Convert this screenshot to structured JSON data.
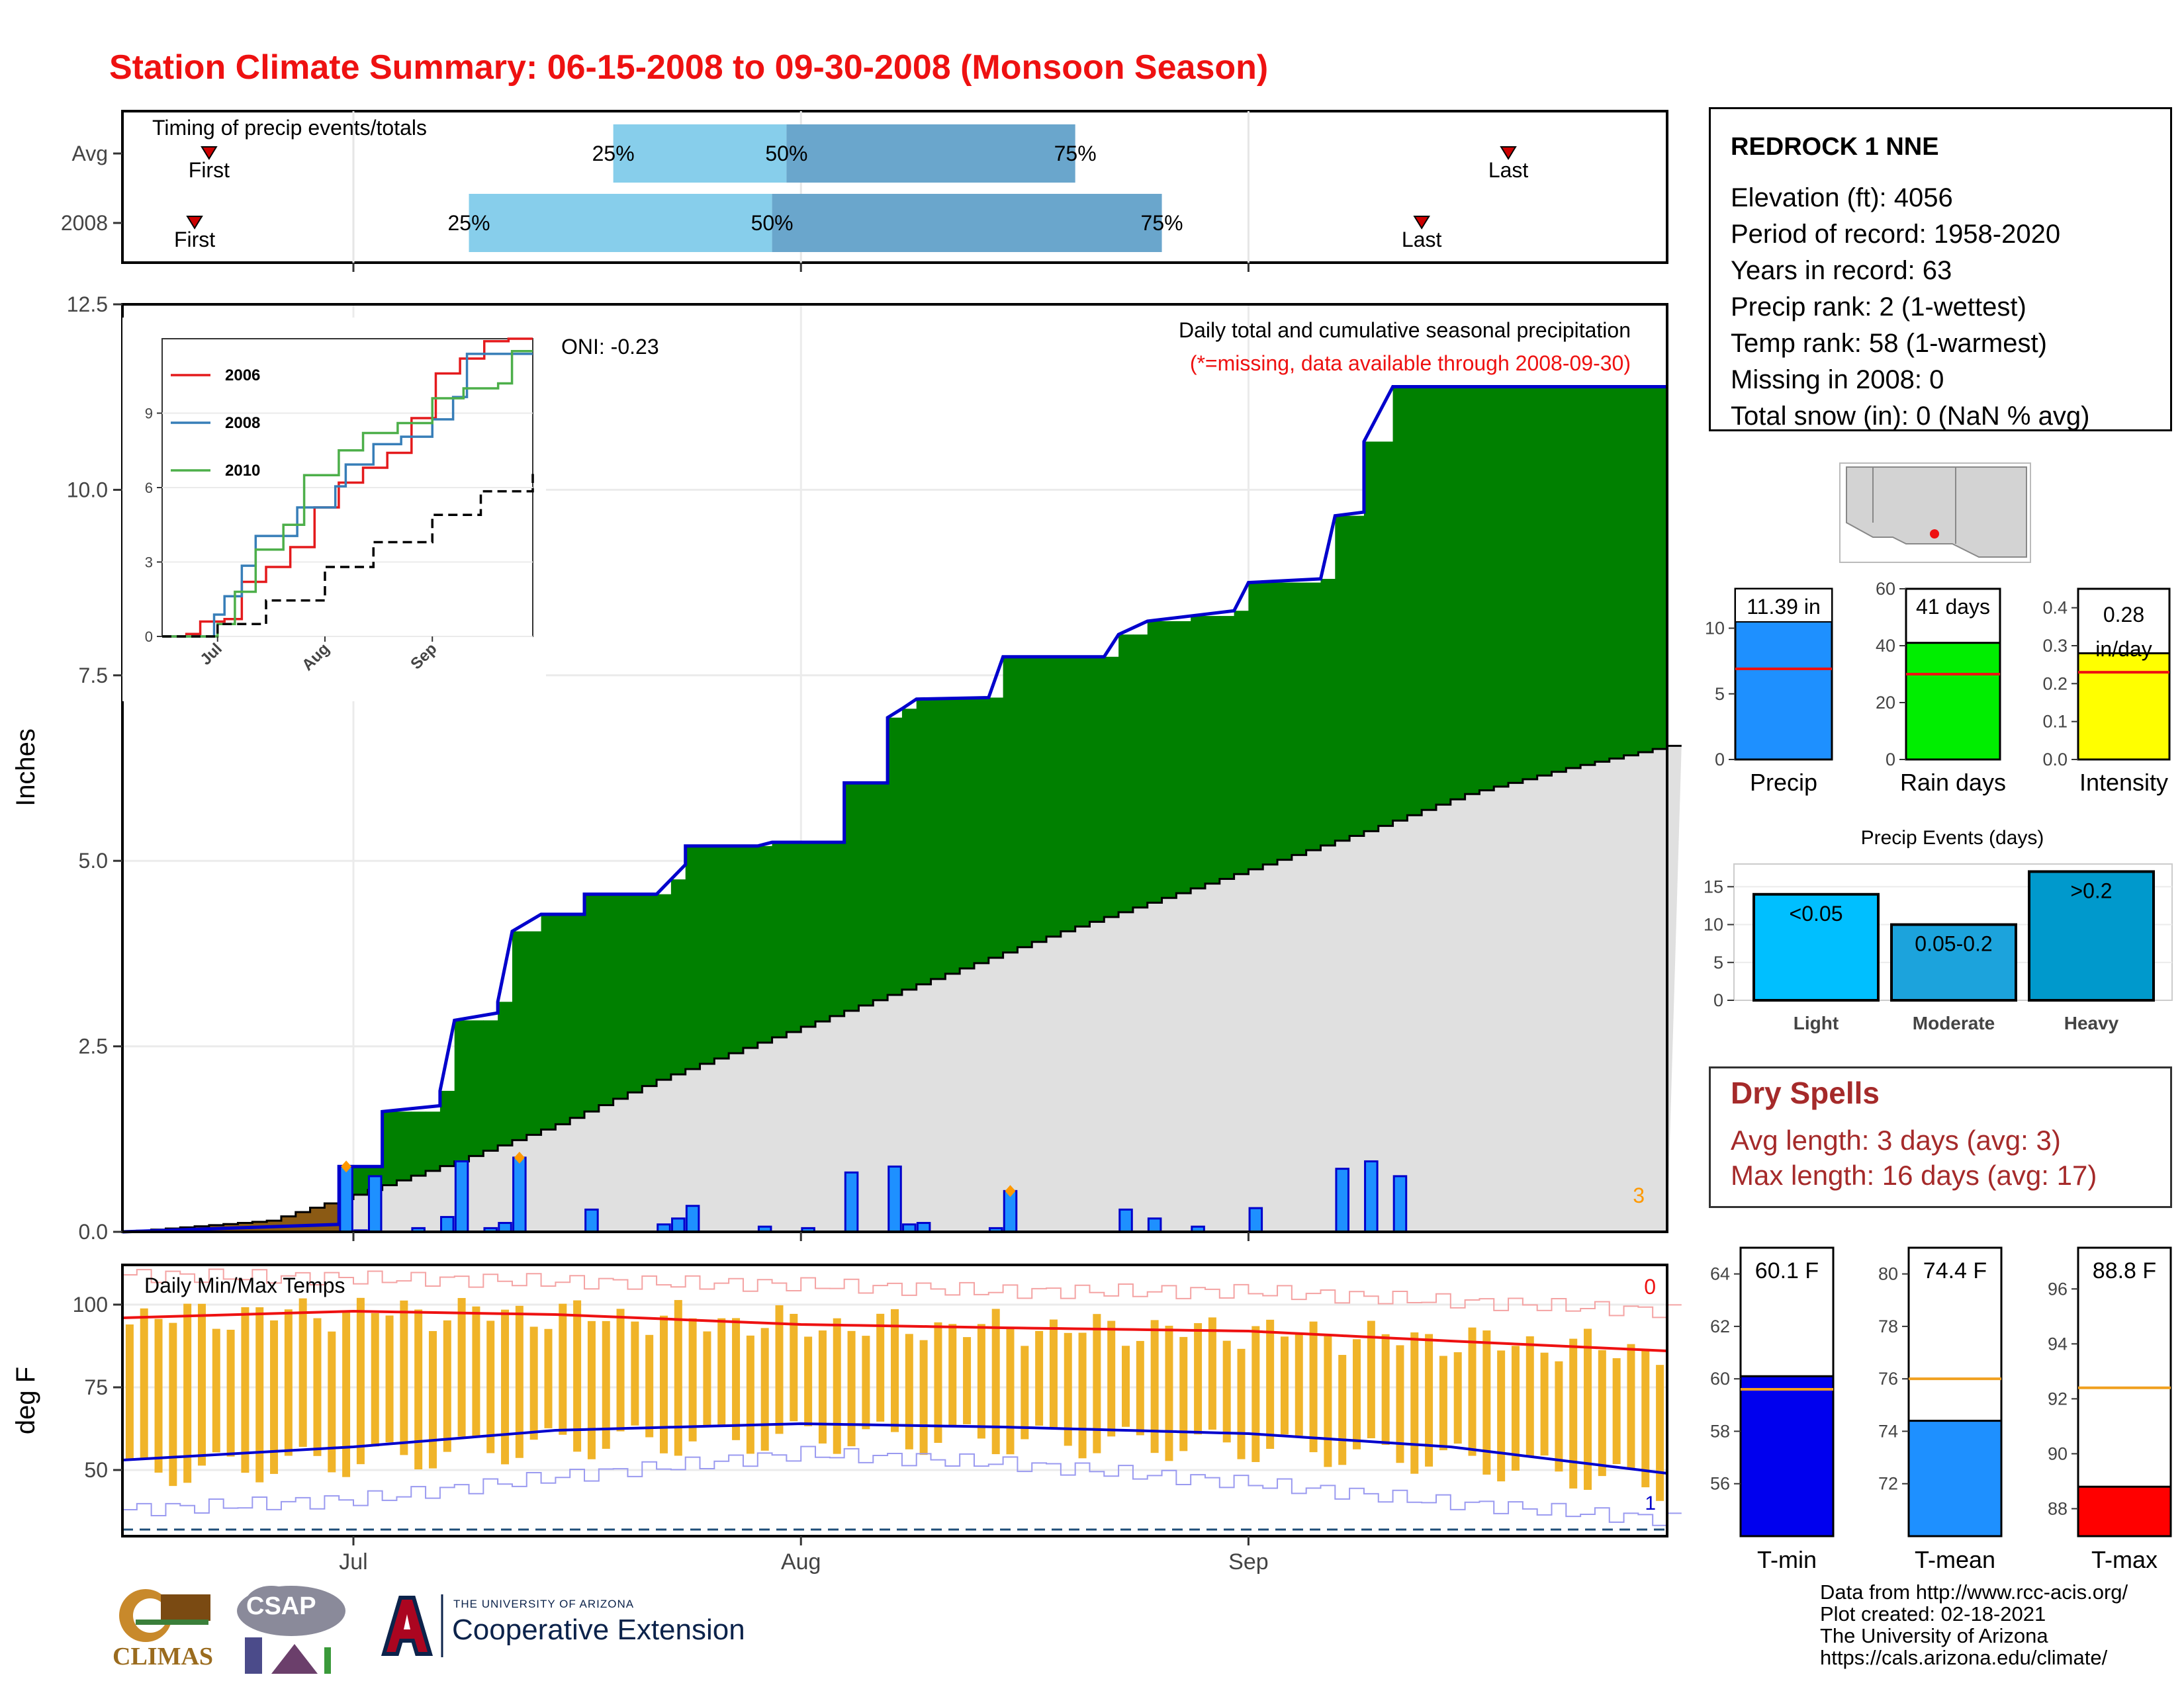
{
  "page": {
    "title": "Station Climate Summary: 06-15-2008 to 09-30-2008 (Monsoon Season)"
  },
  "colors": {
    "title": "#ee1111",
    "cumulative_above_avg": "#008000",
    "cumulative_below_avg": "#8b5a14",
    "climatology_fill": "#e0e0e0",
    "daily_bar": "#1e90ff",
    "bar_outline": "#0000cc",
    "temp_bar": "#f0b429",
    "tmax_line": "#ee1111",
    "tmin_line": "#0000cc",
    "quartile_light": "#87ceeb",
    "quartile_dark": "#6aa6cc",
    "dry_spell_text": "#a52a2a"
  },
  "station": {
    "name": "REDROCK 1 NNE",
    "lines": [
      "Elevation (ft): 4056",
      "Period of record: 1958-2020",
      "Years in record: 63",
      "Precip rank: 2 (1-wettest)",
      "Temp rank: 58 (1-warmest)",
      "Missing in 2008: 0",
      "Total snow (in): 0 (NaN % avg)"
    ]
  },
  "dry_spells": {
    "title": "Dry Spells",
    "avg_length": "Avg length: 3 days (avg: 3)",
    "max_length": "Max length: 16 days (avg: 17)"
  },
  "credits": {
    "lines": [
      "Data from http://www.rcc-acis.org/",
      "Plot created: 02-18-2021",
      "The University of Arizona",
      "https://cals.arizona.edu/climate/"
    ]
  },
  "logos": {
    "climas": "CLIMAS",
    "csap": "CSAP",
    "ua_small": "THE UNIVERSITY OF ARIZONA",
    "ua_big": "Cooperative Extension"
  },
  "chart_data": [
    {
      "id": "timing",
      "type": "bar",
      "title": "Timing of precip events/totals",
      "rows": [
        {
          "label": "Avg",
          "first": "2008-06-21",
          "q25": "2008-07-19",
          "q50": "2008-07-31",
          "q75": "2008-08-20",
          "last": "2008-09-19",
          "first_label": "First",
          "last_label": "Last",
          "q25_label": "25%",
          "q50_label": "50%",
          "q75_label": "75%"
        },
        {
          "label": "2008",
          "first": "2008-06-20",
          "q25": "2008-07-09",
          "q50": "2008-07-30",
          "q75": "2008-08-26",
          "last": "2008-09-13",
          "first_label": "First",
          "last_label": "Last",
          "q25_label": "25%",
          "q50_label": "50%",
          "q75_label": "75%"
        }
      ]
    },
    {
      "id": "precip_main",
      "type": "area",
      "title": "Daily total and cumulative seasonal precipitation",
      "subtitle": "(*=missing, data available through 2008-09-30)",
      "oni": "ONI: -0.23",
      "ylabel": "Inches",
      "ylim": [
        0,
        12.5
      ],
      "yticks": [
        "0.0",
        "2.5",
        "5.0",
        "7.5",
        "10.0",
        "12.5"
      ],
      "xlim": [
        "2008-06-15",
        "2008-09-30"
      ],
      "xticks": [
        "Jul",
        "Aug",
        "Sep"
      ],
      "corner_count": "3",
      "daily_precip": [
        {
          "date": "2008-06-30",
          "in": 0.88
        },
        {
          "date": "2008-07-01",
          "in": 0.02
        },
        {
          "date": "2008-07-02",
          "in": 0.75
        },
        {
          "date": "2008-07-05",
          "in": 0.05
        },
        {
          "date": "2008-07-07",
          "in": 0.2
        },
        {
          "date": "2008-07-08",
          "in": 0.95
        },
        {
          "date": "2008-07-10",
          "in": 0.05
        },
        {
          "date": "2008-07-11",
          "in": 0.12
        },
        {
          "date": "2008-07-12",
          "in": 1.0
        },
        {
          "date": "2008-07-17",
          "in": 0.3
        },
        {
          "date": "2008-07-22",
          "in": 0.1
        },
        {
          "date": "2008-07-23",
          "in": 0.18
        },
        {
          "date": "2008-07-24",
          "in": 0.35
        },
        {
          "date": "2008-07-29",
          "in": 0.07
        },
        {
          "date": "2008-08-01",
          "in": 0.05
        },
        {
          "date": "2008-08-04",
          "in": 0.8
        },
        {
          "date": "2008-08-07",
          "in": 0.88
        },
        {
          "date": "2008-08-08",
          "in": 0.1
        },
        {
          "date": "2008-08-09",
          "in": 0.12
        },
        {
          "date": "2008-08-14",
          "in": 0.05
        },
        {
          "date": "2008-08-15",
          "in": 0.55
        },
        {
          "date": "2008-08-23",
          "in": 0.3
        },
        {
          "date": "2008-08-25",
          "in": 0.18
        },
        {
          "date": "2008-08-28",
          "in": 0.07
        },
        {
          "date": "2008-09-01",
          "in": 0.32
        },
        {
          "date": "2008-09-07",
          "in": 0.85
        },
        {
          "date": "2008-09-09",
          "in": 0.95
        },
        {
          "date": "2008-09-11",
          "in": 0.75
        }
      ],
      "missing_markers": [
        "2008-06-30",
        "2008-07-12",
        "2008-08-15"
      ],
      "cumulative_2008": [
        {
          "date": "2008-06-15",
          "in": 0.0
        },
        {
          "date": "2008-06-30",
          "in": 0.1
        },
        {
          "date": "2008-06-30",
          "in": 0.88
        },
        {
          "date": "2008-07-03",
          "in": 0.88
        },
        {
          "date": "2008-07-03",
          "in": 1.62
        },
        {
          "date": "2008-07-07",
          "in": 1.7
        },
        {
          "date": "2008-07-07",
          "in": 1.9
        },
        {
          "date": "2008-07-08",
          "in": 2.85
        },
        {
          "date": "2008-07-11",
          "in": 2.95
        },
        {
          "date": "2008-07-11",
          "in": 3.1
        },
        {
          "date": "2008-07-12",
          "in": 4.05
        },
        {
          "date": "2008-07-14",
          "in": 4.28
        },
        {
          "date": "2008-07-17",
          "in": 4.28
        },
        {
          "date": "2008-07-17",
          "in": 4.55
        },
        {
          "date": "2008-07-22",
          "in": 4.55
        },
        {
          "date": "2008-07-23",
          "in": 4.75
        },
        {
          "date": "2008-07-24",
          "in": 4.95
        },
        {
          "date": "2008-07-24",
          "in": 5.2
        },
        {
          "date": "2008-07-29",
          "in": 5.2
        },
        {
          "date": "2008-07-30",
          "in": 5.25
        },
        {
          "date": "2008-08-04",
          "in": 5.25
        },
        {
          "date": "2008-08-04",
          "in": 6.05
        },
        {
          "date": "2008-08-07",
          "in": 6.05
        },
        {
          "date": "2008-08-07",
          "in": 6.93
        },
        {
          "date": "2008-08-08",
          "in": 7.05
        },
        {
          "date": "2008-08-09",
          "in": 7.18
        },
        {
          "date": "2008-08-14",
          "in": 7.2
        },
        {
          "date": "2008-08-15",
          "in": 7.75
        },
        {
          "date": "2008-08-22",
          "in": 7.75
        },
        {
          "date": "2008-08-23",
          "in": 8.05
        },
        {
          "date": "2008-08-25",
          "in": 8.23
        },
        {
          "date": "2008-08-28",
          "in": 8.3
        },
        {
          "date": "2008-08-31",
          "in": 8.37
        },
        {
          "date": "2008-09-01",
          "in": 8.75
        },
        {
          "date": "2008-09-06",
          "in": 8.8
        },
        {
          "date": "2008-09-07",
          "in": 9.65
        },
        {
          "date": "2008-09-09",
          "in": 9.7
        },
        {
          "date": "2008-09-09",
          "in": 10.65
        },
        {
          "date": "2008-09-11",
          "in": 11.39
        },
        {
          "date": "2008-09-30",
          "in": 11.39
        }
      ],
      "avg_cumulative": [
        {
          "date": "2008-06-15",
          "in": 0.0
        },
        {
          "date": "2008-06-25",
          "in": 0.15
        },
        {
          "date": "2008-07-01",
          "in": 0.5
        },
        {
          "date": "2008-07-08",
          "in": 0.95
        },
        {
          "date": "2008-07-15",
          "in": 1.45
        },
        {
          "date": "2008-07-22",
          "in": 2.05
        },
        {
          "date": "2008-07-29",
          "in": 2.55
        },
        {
          "date": "2008-08-05",
          "in": 3.05
        },
        {
          "date": "2008-08-12",
          "in": 3.55
        },
        {
          "date": "2008-08-19",
          "in": 4.05
        },
        {
          "date": "2008-08-26",
          "in": 4.5
        },
        {
          "date": "2008-09-02",
          "in": 4.95
        },
        {
          "date": "2008-09-09",
          "in": 5.4
        },
        {
          "date": "2008-09-16",
          "in": 5.9
        },
        {
          "date": "2008-09-23",
          "in": 6.25
        },
        {
          "date": "2008-09-30",
          "in": 6.55
        }
      ]
    },
    {
      "id": "inset_cumulative",
      "type": "line",
      "ylim": [
        0,
        12
      ],
      "yticks": [
        "0",
        "3",
        "6",
        "9"
      ],
      "xticks": [
        "Jul",
        "Aug",
        "Sep"
      ],
      "series": [
        {
          "name": "2006",
          "color": "#e41a1c",
          "points": [
            [
              "2008-06-15",
              0
            ],
            [
              "2008-06-22",
              0.1
            ],
            [
              "2008-06-26",
              0.6
            ],
            [
              "2008-07-03",
              0.7
            ],
            [
              "2008-07-08",
              2.2
            ],
            [
              "2008-07-15",
              2.8
            ],
            [
              "2008-07-22",
              3.6
            ],
            [
              "2008-07-29",
              5.2
            ],
            [
              "2008-08-05",
              6.2
            ],
            [
              "2008-08-12",
              6.8
            ],
            [
              "2008-08-19",
              7.4
            ],
            [
              "2008-08-26",
              8.8
            ],
            [
              "2008-09-02",
              10.6
            ],
            [
              "2008-09-09",
              11.2
            ],
            [
              "2008-09-16",
              11.9
            ],
            [
              "2008-09-23",
              12.0
            ],
            [
              "2008-09-30",
              12.0
            ]
          ]
        },
        {
          "name": "2008",
          "color": "#377eb8",
          "points": [
            [
              "2008-06-15",
              0
            ],
            [
              "2008-06-30",
              0.88
            ],
            [
              "2008-07-03",
              1.62
            ],
            [
              "2008-07-08",
              2.85
            ],
            [
              "2008-07-12",
              4.05
            ],
            [
              "2008-07-24",
              5.2
            ],
            [
              "2008-08-04",
              6.05
            ],
            [
              "2008-08-07",
              6.93
            ],
            [
              "2008-08-15",
              7.75
            ],
            [
              "2008-08-23",
              8.05
            ],
            [
              "2008-09-01",
              8.75
            ],
            [
              "2008-09-07",
              9.65
            ],
            [
              "2008-09-11",
              11.39
            ],
            [
              "2008-09-30",
              11.39
            ]
          ]
        },
        {
          "name": "2010",
          "color": "#4daf4a",
          "points": [
            [
              "2008-06-15",
              0
            ],
            [
              "2008-07-01",
              0.5
            ],
            [
              "2008-07-06",
              1.8
            ],
            [
              "2008-07-12",
              3.5
            ],
            [
              "2008-07-20",
              4.5
            ],
            [
              "2008-07-26",
              6.5
            ],
            [
              "2008-08-05",
              7.5
            ],
            [
              "2008-08-12",
              8.2
            ],
            [
              "2008-08-22",
              8.6
            ],
            [
              "2008-09-01",
              9.6
            ],
            [
              "2008-09-10",
              10.0
            ],
            [
              "2008-09-20",
              10.2
            ],
            [
              "2008-09-24",
              11.5
            ],
            [
              "2008-09-30",
              11.5
            ]
          ]
        },
        {
          "color": "#000000",
          "dashed": true,
          "points": [
            [
              "2008-06-15",
              0
            ],
            [
              "2008-07-01",
              0.5
            ],
            [
              "2008-07-15",
              1.45
            ],
            [
              "2008-08-01",
              2.8
            ],
            [
              "2008-08-15",
              3.8
            ],
            [
              "2008-09-01",
              4.9
            ],
            [
              "2008-09-15",
              5.85
            ],
            [
              "2008-09-30",
              6.55
            ]
          ]
        }
      ]
    },
    {
      "id": "temps",
      "type": "bar",
      "title": "Daily Min/Max Temps",
      "ylabel": "deg F",
      "ylim": [
        30,
        112
      ],
      "yticks": [
        "50",
        "75",
        "100"
      ],
      "xticks": [
        "Jul",
        "Aug",
        "Sep"
      ],
      "corner_top": "0",
      "corner_bottom": "1",
      "avg_tmax": [
        [
          "2008-06-15",
          96
        ],
        [
          "2008-07-01",
          98
        ],
        [
          "2008-07-15",
          97
        ],
        [
          "2008-08-01",
          94
        ],
        [
          "2008-08-15",
          93
        ],
        [
          "2008-09-01",
          92
        ],
        [
          "2008-09-15",
          89
        ],
        [
          "2008-09-30",
          86
        ]
      ],
      "avg_tmin": [
        [
          "2008-06-15",
          53
        ],
        [
          "2008-07-01",
          57
        ],
        [
          "2008-07-15",
          62
        ],
        [
          "2008-08-01",
          64
        ],
        [
          "2008-08-15",
          63
        ],
        [
          "2008-09-01",
          61
        ],
        [
          "2008-09-15",
          57
        ],
        [
          "2008-09-30",
          49
        ]
      ],
      "record_high": [
        [
          "2008-06-15",
          109
        ],
        [
          "2008-07-01",
          108
        ],
        [
          "2008-07-15",
          107
        ],
        [
          "2008-08-01",
          106
        ],
        [
          "2008-08-15",
          104
        ],
        [
          "2008-09-01",
          104
        ],
        [
          "2008-09-15",
          101
        ],
        [
          "2008-09-30",
          98
        ]
      ],
      "record_low": [
        [
          "2008-06-15",
          38
        ],
        [
          "2008-07-01",
          41
        ],
        [
          "2008-07-15",
          48
        ],
        [
          "2008-08-01",
          55
        ],
        [
          "2008-08-15",
          52
        ],
        [
          "2008-09-01",
          46
        ],
        [
          "2008-09-15",
          40
        ],
        [
          "2008-09-30",
          35
        ]
      ],
      "freezing_line": 32
    },
    {
      "id": "season_precip",
      "type": "bar",
      "label": "Precip",
      "value": 11.39,
      "value_label": "11.39 in",
      "avg": 6.9,
      "ylim": [
        0,
        13
      ],
      "yticks": [
        "0",
        "5",
        "10"
      ]
    },
    {
      "id": "season_raindays",
      "type": "bar",
      "label": "Rain days",
      "value": 41,
      "value_label": "41 days",
      "avg": 30,
      "ylim": [
        0,
        60
      ],
      "yticks": [
        "0",
        "20",
        "40",
        "60"
      ]
    },
    {
      "id": "season_intensity",
      "type": "bar",
      "label": "Intensity",
      "value": 0.28,
      "value_label": "0.28",
      "value_label_2": "in/day",
      "avg": 0.23,
      "ylim": [
        0,
        0.45
      ],
      "yticks": [
        "0.0",
        "0.1",
        "0.2",
        "0.3",
        "0.4"
      ]
    },
    {
      "id": "precip_events",
      "type": "bar",
      "title": "Precip Events (days)",
      "categories": [
        "Light",
        "Moderate",
        "Heavy"
      ],
      "values": [
        14,
        10,
        17
      ],
      "bar_labels": [
        "<0.05",
        "0.05-0.2",
        ">0.2"
      ],
      "ylim": [
        0,
        18
      ],
      "yticks": [
        "0",
        "5",
        "10",
        "15"
      ]
    },
    {
      "id": "tmin",
      "type": "bar",
      "label": "T-min",
      "value": 60.1,
      "value_label": "60.1 F",
      "avg": 59.6,
      "ylim": [
        54,
        65
      ],
      "yticks": [
        "56",
        "58",
        "60",
        "62",
        "64"
      ]
    },
    {
      "id": "tmean",
      "type": "bar",
      "label": "T-mean",
      "value": 74.4,
      "value_label": "74.4 F",
      "avg": 76.0,
      "ylim": [
        70,
        81
      ],
      "yticks": [
        "72",
        "74",
        "76",
        "78",
        "80"
      ]
    },
    {
      "id": "tmax",
      "type": "bar",
      "label": "T-max",
      "value": 88.8,
      "value_label": "88.8 F",
      "avg": 92.4,
      "ylim": [
        87,
        97.5
      ],
      "yticks": [
        "88",
        "90",
        "92",
        "94",
        "96"
      ]
    }
  ]
}
